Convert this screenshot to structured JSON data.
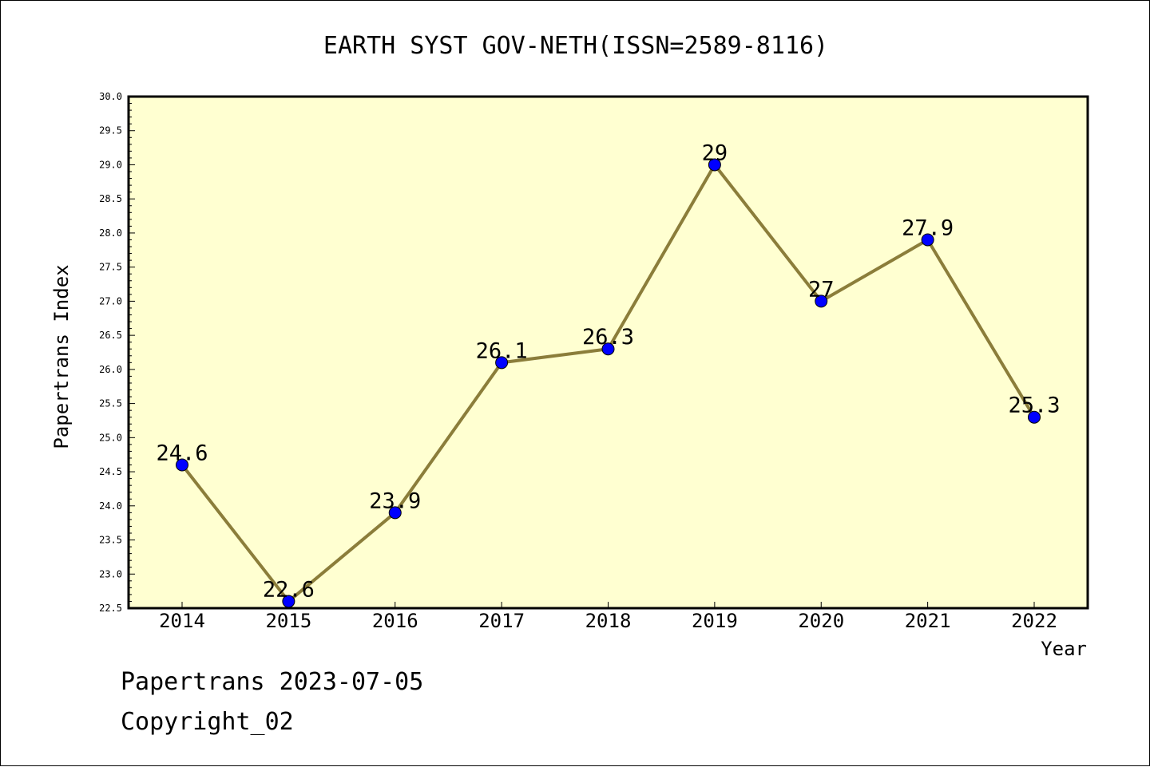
{
  "chart_data": {
    "type": "line",
    "title": "EARTH SYST GOV-NETH(ISSN=2589-8116)",
    "xlabel": "Year",
    "ylabel": "Papertrans Index",
    "categories": [
      "2014",
      "2015",
      "2016",
      "2017",
      "2018",
      "2019",
      "2020",
      "2021",
      "2022"
    ],
    "series": [
      {
        "values": [
          24.6,
          22.6,
          23.9,
          26.1,
          26.3,
          29,
          27,
          27.9,
          25.3
        ]
      }
    ],
    "data_labels": [
      "24.6",
      "22.6",
      "23.9",
      "26.1",
      "26.3",
      "29",
      "27",
      "27.9",
      "25.3"
    ],
    "ylim": [
      22.5,
      30.0
    ],
    "yticks": [
      "22.5",
      "23.0",
      "23.5",
      "24.0",
      "24.5",
      "25.0",
      "25.5",
      "26.0",
      "26.5",
      "27.0",
      "27.5",
      "28.0",
      "28.5",
      "29.0",
      "29.5",
      "30.0"
    ],
    "grid": false,
    "colors": {
      "plot_background": "#FFFFD1",
      "line": "#8B7D3A",
      "marker": "#0000FF"
    }
  },
  "footer": {
    "line1": "Papertrans 2023-07-05",
    "line2": "Copyright_02"
  }
}
